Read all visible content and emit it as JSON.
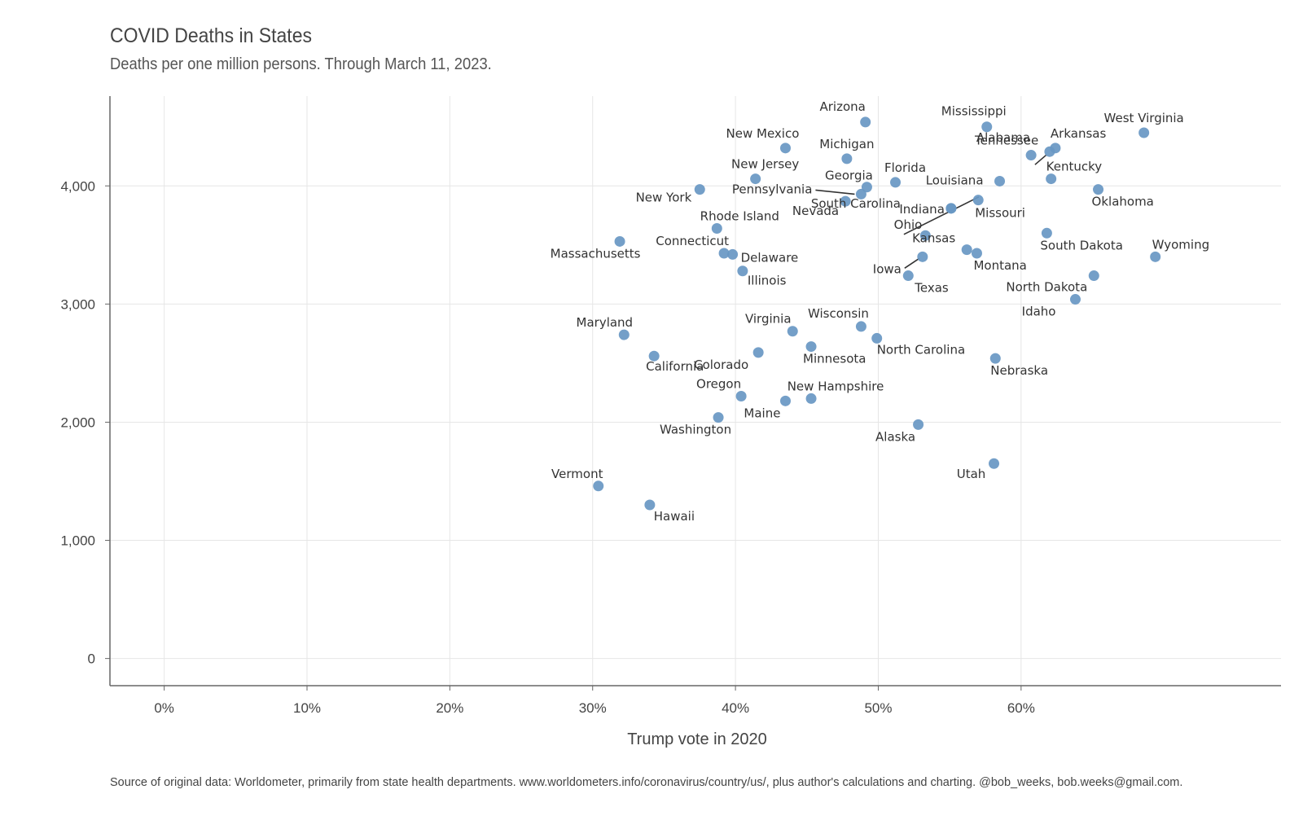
{
  "chart_data": {
    "type": "scatter",
    "title": "COVID Deaths in States",
    "subtitle": "Deaths per one million persons. Through March 11, 2023.",
    "xlabel": "Trump vote in 2020",
    "ylabel": "",
    "caption": "Source of original data: Worldometer, primarily from state health departments. www.worldometers.info/coronavirus/country/us/, plus author's calculations and charting. @bob_weeks, bob.weeks@gmail.com.",
    "xlim": [
      -0.038,
      0.782
    ],
    "ylim": [
      -230,
      4760
    ],
    "xticks": [
      0,
      0.1,
      0.2,
      0.3,
      0.4,
      0.5,
      0.6
    ],
    "xtick_labels": [
      "0%",
      "10%",
      "20%",
      "30%",
      "40%",
      "50%",
      "60%"
    ],
    "yticks": [
      0,
      1000,
      2000,
      3000,
      4000
    ],
    "ytick_labels": [
      "0",
      "1,000",
      "2,000",
      "3,000",
      "4,000"
    ],
    "grid": true,
    "point_color": "#6897c3",
    "points": [
      {
        "label": "Arizona",
        "x": 0.491,
        "y": 4540
      },
      {
        "label": "Mississippi",
        "x": 0.576,
        "y": 4500
      },
      {
        "label": "West Virginia",
        "x": 0.686,
        "y": 4450
      },
      {
        "label": "New Mexico",
        "x": 0.435,
        "y": 4320
      },
      {
        "label": "Arkansas",
        "x": 0.624,
        "y": 4320
      },
      {
        "label": "Tennessee",
        "x": 0.607,
        "y": 4260
      },
      {
        "label": "Alabama",
        "x": 0.62,
        "y": 4290
      },
      {
        "label": "Michigan",
        "x": 0.478,
        "y": 4230
      },
      {
        "label": "New Jersey",
        "x": 0.414,
        "y": 4060
      },
      {
        "label": "Kentucky",
        "x": 0.621,
        "y": 4060
      },
      {
        "label": "Florida",
        "x": 0.512,
        "y": 4030
      },
      {
        "label": "Georgia",
        "x": 0.492,
        "y": 3990
      },
      {
        "label": "Oklahoma",
        "x": 0.654,
        "y": 3970
      },
      {
        "label": "New York",
        "x": 0.375,
        "y": 3970
      },
      {
        "label": "Louisiana",
        "x": 0.585,
        "y": 4040
      },
      {
        "label": "Pennsylvania",
        "x": 0.488,
        "y": 3930
      },
      {
        "label": "Missouri",
        "x": 0.57,
        "y": 3880
      },
      {
        "label": "Nevada",
        "x": 0.477,
        "y": 3870
      },
      {
        "label": "Indiana",
        "x": 0.551,
        "y": 3810
      },
      {
        "label": "Rhode Island",
        "x": 0.387,
        "y": 3640
      },
      {
        "label": "South Carolina",
        "x": 0.551,
        "y": 3810
      },
      {
        "label": "South Dakota",
        "x": 0.618,
        "y": 3600
      },
      {
        "label": "Kansas",
        "x": 0.562,
        "y": 3460
      },
      {
        "label": "Massachusetts",
        "x": 0.319,
        "y": 3530
      },
      {
        "label": "Ohio",
        "x": 0.533,
        "y": 3580
      },
      {
        "label": "Wyoming",
        "x": 0.694,
        "y": 3400
      },
      {
        "label": "Connecticut",
        "x": 0.392,
        "y": 3430
      },
      {
        "label": "Delaware",
        "x": 0.398,
        "y": 3420
      },
      {
        "label": "Montana",
        "x": 0.569,
        "y": 3430
      },
      {
        "label": "Iowa",
        "x": 0.531,
        "y": 3400
      },
      {
        "label": "Illinois",
        "x": 0.405,
        "y": 3280
      },
      {
        "label": "Texas",
        "x": 0.521,
        "y": 3240
      },
      {
        "label": "North Dakota",
        "x": 0.651,
        "y": 3240
      },
      {
        "label": "Idaho",
        "x": 0.638,
        "y": 3040
      },
      {
        "label": "Wisconsin",
        "x": 0.488,
        "y": 2810
      },
      {
        "label": "Virginia",
        "x": 0.44,
        "y": 2770
      },
      {
        "label": "Maryland",
        "x": 0.322,
        "y": 2740
      },
      {
        "label": "North Carolina",
        "x": 0.499,
        "y": 2710
      },
      {
        "label": "Minnesota",
        "x": 0.453,
        "y": 2640
      },
      {
        "label": "California",
        "x": 0.343,
        "y": 2560
      },
      {
        "label": "Colorado",
        "x": 0.416,
        "y": 2590
      },
      {
        "label": "Nebraska",
        "x": 0.582,
        "y": 2540
      },
      {
        "label": "Oregon",
        "x": 0.404,
        "y": 2220
      },
      {
        "label": "New Hampshire",
        "x": 0.453,
        "y": 2200
      },
      {
        "label": "Maine",
        "x": 0.435,
        "y": 2180
      },
      {
        "label": "Washington",
        "x": 0.388,
        "y": 2040
      },
      {
        "label": "Alaska",
        "x": 0.528,
        "y": 1980
      },
      {
        "label": "Utah",
        "x": 0.581,
        "y": 1650
      },
      {
        "label": "Vermont",
        "x": 0.304,
        "y": 1460
      },
      {
        "label": "Hawaii",
        "x": 0.34,
        "y": 1300
      }
    ]
  }
}
